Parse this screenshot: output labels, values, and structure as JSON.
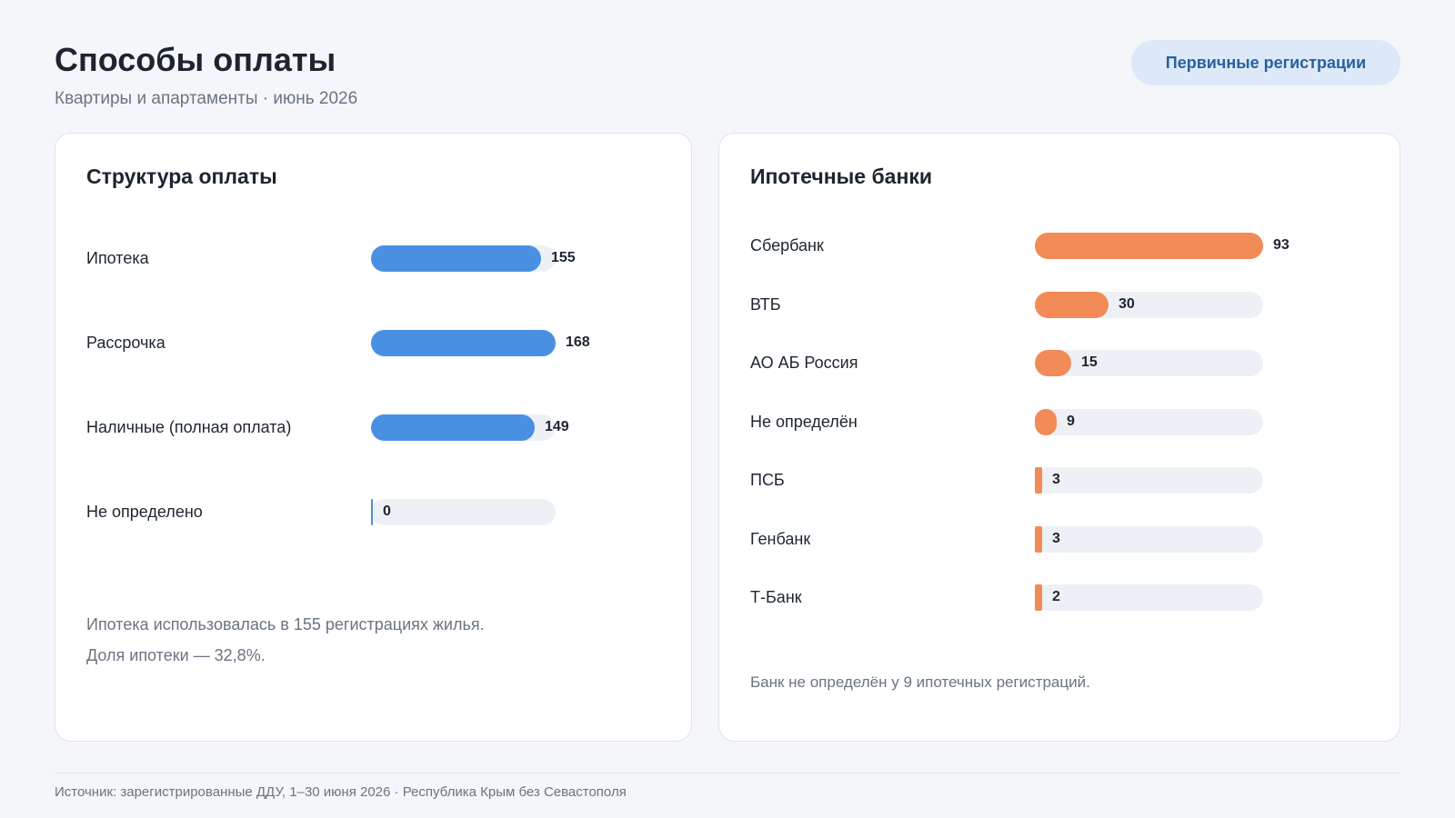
{
  "header": {
    "title": "Способы оплаты",
    "subtitle": "Квартиры и апартаменты · июнь 2026",
    "button_label": "Первичные регистрации"
  },
  "colors": {
    "payment_bar": "#4a90e2",
    "bank_bar": "#f28b57",
    "track": "#edf1f6"
  },
  "chart_data": [
    {
      "type": "bar",
      "orientation": "horizontal",
      "title": "Структура оплаты",
      "categories": [
        "Ипотека",
        "Рассрочка",
        "Наличные (полная оплата)",
        "Не определено"
      ],
      "values": [
        155,
        168,
        149,
        0
      ],
      "xlim": [
        0,
        168
      ],
      "grid": false
    },
    {
      "type": "bar",
      "orientation": "horizontal",
      "title": "Ипотечные банки",
      "categories": [
        "Сбербанк",
        "ВТБ",
        "АО АБ Россия",
        "Не определён",
        "ПСБ",
        "Генбанк",
        "Т-Банк"
      ],
      "values": [
        93,
        30,
        15,
        9,
        3,
        3,
        2
      ],
      "xlim": [
        0,
        93
      ],
      "grid": false
    }
  ],
  "notes": {
    "payment_line1": "Ипотека использовалась в 155 регистрациях жилья.",
    "payment_line2": "Доля ипотеки — 32,8%.",
    "banks": "Банк не определён у 9 ипотечных регистраций."
  },
  "footer": "Источник: зарегистрированные ДДУ, 1–30 июня 2026 · Республика Крым без Севастополя"
}
